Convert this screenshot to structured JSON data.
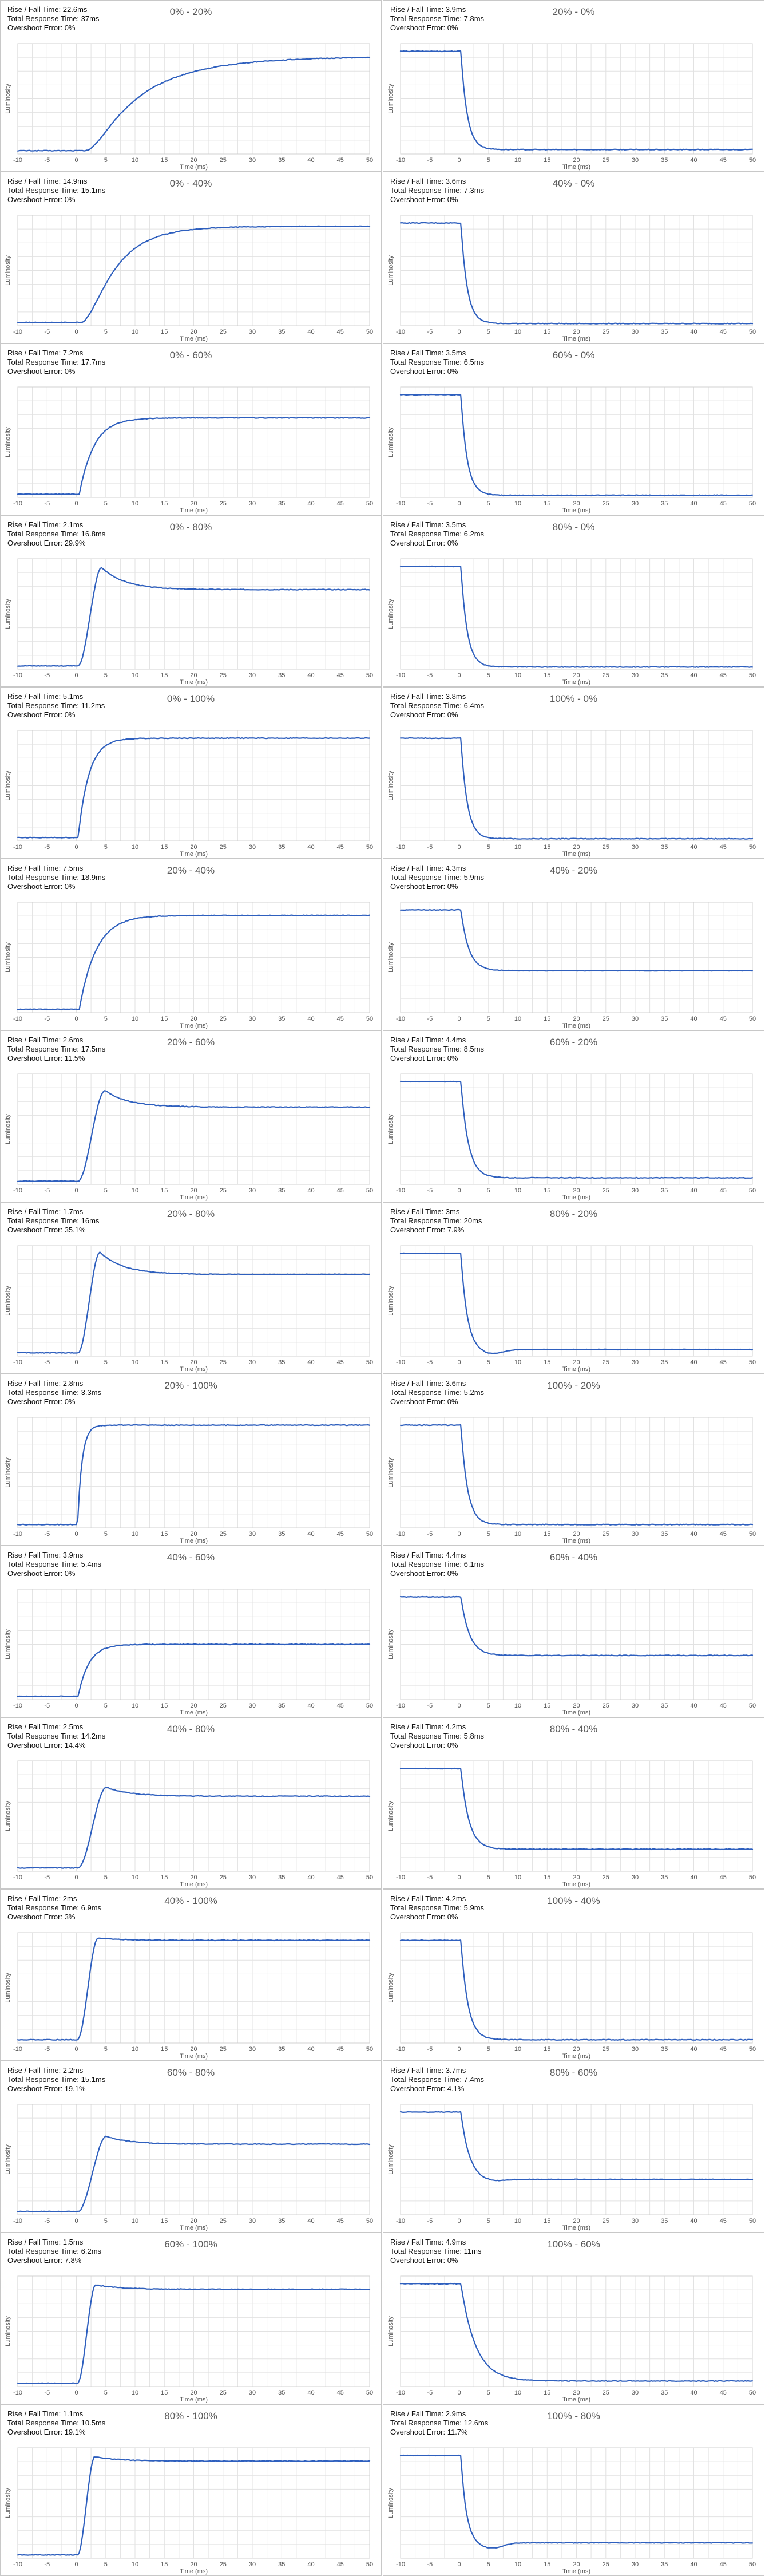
{
  "colors": {
    "curve": "#2e5fbe",
    "grid": "#e2e2e2",
    "border": "#c8c8c8",
    "title": "#5a5a5a"
  },
  "labels": {
    "rise": "Rise / Fall Time: ",
    "total": "Total Response Time: ",
    "overshoot": "Overshoot Error: "
  },
  "chart_data": [
    {
      "type": "line",
      "title": "0% - 20%",
      "rise_fall": "22.6ms",
      "total": "37ms",
      "overshoot": "0%",
      "kind": "rise",
      "from": 0,
      "to": 20,
      "settle": 0.88,
      "speed": 0.1,
      "os": 0,
      "delay": 1.5,
      "xlabel": "Time (ms)",
      "ylabel": "Luminosity",
      "xlim": [
        -10,
        50
      ],
      "xticks": [
        -10,
        -5,
        0,
        5,
        10,
        15,
        20,
        25,
        30,
        35,
        40,
        45,
        50
      ]
    },
    {
      "type": "line",
      "title": "20% - 0%",
      "rise_fall": "3.9ms",
      "total": "7.8ms",
      "overshoot": "0%",
      "kind": "fall",
      "from": 20,
      "to": 0,
      "settle": 0.04,
      "speed": 0.95,
      "os": 0,
      "delay": 0.3,
      "xlabel": "Time (ms)",
      "ylabel": "Luminosity",
      "xlim": [
        -10,
        50
      ],
      "xticks": [
        -10,
        -5,
        0,
        5,
        10,
        15,
        20,
        25,
        30,
        35,
        40,
        45,
        50
      ]
    },
    {
      "type": "line",
      "title": "0% - 40%",
      "rise_fall": "14.9ms",
      "total": "15.1ms",
      "overshoot": "0%",
      "kind": "rise",
      "from": 0,
      "to": 40,
      "settle": 0.9,
      "speed": 0.18,
      "os": 0,
      "delay": 0.8,
      "xlabel": "Time (ms)",
      "ylabel": "Luminosity",
      "xlim": [
        -10,
        50
      ],
      "xticks": [
        -10,
        -5,
        0,
        5,
        10,
        15,
        20,
        25,
        30,
        35,
        40,
        45,
        50
      ]
    },
    {
      "type": "line",
      "title": "40% - 0%",
      "rise_fall": "3.6ms",
      "total": "7.3ms",
      "overshoot": "0%",
      "kind": "fall",
      "from": 40,
      "to": 0,
      "settle": 0.02,
      "speed": 0.95,
      "os": 0,
      "delay": 0.3,
      "xlabel": "Time (ms)",
      "ylabel": "Luminosity",
      "xlim": [
        -10,
        50
      ],
      "xticks": [
        -10,
        -5,
        0,
        5,
        10,
        15,
        20,
        25,
        30,
        35,
        40,
        45,
        50
      ]
    },
    {
      "type": "line",
      "title": "0% - 60%",
      "rise_fall": "7.2ms",
      "total": "17.7ms",
      "overshoot": "0%",
      "kind": "rise",
      "from": 0,
      "to": 60,
      "settle": 0.72,
      "speed": 0.4,
      "os": 0,
      "delay": 0.5,
      "xlabel": "Time (ms)",
      "ylabel": "Luminosity",
      "xlim": [
        -10,
        50
      ],
      "xticks": [
        -10,
        -5,
        0,
        5,
        10,
        15,
        20,
        25,
        30,
        35,
        40,
        45,
        50
      ]
    },
    {
      "type": "line",
      "title": "60% - 0%",
      "rise_fall": "3.5ms",
      "total": "6.5ms",
      "overshoot": "0%",
      "kind": "fall",
      "from": 60,
      "to": 0,
      "settle": 0.02,
      "speed": 0.95,
      "os": 0,
      "delay": 0.3,
      "xlabel": "Time (ms)",
      "ylabel": "Luminosity",
      "xlim": [
        -10,
        50
      ],
      "xticks": [
        -10,
        -5,
        0,
        5,
        10,
        15,
        20,
        25,
        30,
        35,
        40,
        45,
        50
      ]
    },
    {
      "type": "line",
      "title": "0% - 80%",
      "rise_fall": "2.1ms",
      "total": "16.8ms",
      "overshoot": "29.9%",
      "kind": "rise",
      "from": 0,
      "to": 80,
      "settle": 0.72,
      "speed": 1.0,
      "os": 0.2,
      "delay": 0.3,
      "xlabel": "Time (ms)",
      "ylabel": "Luminosity",
      "xlim": [
        -10,
        50
      ],
      "xticks": [
        -10,
        -5,
        0,
        5,
        10,
        15,
        20,
        25,
        30,
        35,
        40,
        45,
        50
      ]
    },
    {
      "type": "line",
      "title": "80% - 0%",
      "rise_fall": "3.5ms",
      "total": "6.2ms",
      "overshoot": "0%",
      "kind": "fall",
      "from": 80,
      "to": 0,
      "settle": 0.02,
      "speed": 0.95,
      "os": 0,
      "delay": 0.3,
      "xlabel": "Time (ms)",
      "ylabel": "Luminosity",
      "xlim": [
        -10,
        50
      ],
      "xticks": [
        -10,
        -5,
        0,
        5,
        10,
        15,
        20,
        25,
        30,
        35,
        40,
        45,
        50
      ]
    },
    {
      "type": "line",
      "title": "0% - 100%",
      "rise_fall": "5.1ms",
      "total": "11.2ms",
      "overshoot": "0%",
      "kind": "rise",
      "from": 0,
      "to": 100,
      "settle": 0.93,
      "speed": 0.55,
      "os": 0,
      "delay": 0.3,
      "xlabel": "Time (ms)",
      "ylabel": "Luminosity",
      "xlim": [
        -10,
        50
      ],
      "xticks": [
        -10,
        -5,
        0,
        5,
        10,
        15,
        20,
        25,
        30,
        35,
        40,
        45,
        50
      ]
    },
    {
      "type": "line",
      "title": "100% - 0%",
      "rise_fall": "3.8ms",
      "total": "6.4ms",
      "overshoot": "0%",
      "kind": "fall",
      "from": 100,
      "to": 0,
      "settle": 0.02,
      "speed": 0.95,
      "os": 0,
      "delay": 0.3,
      "xlabel": "Time (ms)",
      "ylabel": "Luminosity",
      "xlim": [
        -10,
        50
      ],
      "xticks": [
        -10,
        -5,
        0,
        5,
        10,
        15,
        20,
        25,
        30,
        35,
        40,
        45,
        50
      ]
    },
    {
      "type": "line",
      "title": "20% - 40%",
      "rise_fall": "7.5ms",
      "total": "18.9ms",
      "overshoot": "0%",
      "kind": "rise",
      "from": 20,
      "to": 40,
      "settle": 0.88,
      "speed": 0.35,
      "os": 0,
      "delay": 0.5,
      "xlabel": "Time (ms)",
      "ylabel": "Luminosity",
      "xlim": [
        -10,
        50
      ],
      "xticks": [
        -10,
        -5,
        0,
        5,
        10,
        15,
        20,
        25,
        30,
        35,
        40,
        45,
        50
      ]
    },
    {
      "type": "line",
      "title": "40% - 20%",
      "rise_fall": "4.3ms",
      "total": "5.9ms",
      "overshoot": "0%",
      "kind": "fall",
      "from": 40,
      "to": 20,
      "settle": 0.38,
      "speed": 0.75,
      "os": 0,
      "delay": 0.3,
      "xlabel": "Time (ms)",
      "ylabel": "Luminosity",
      "xlim": [
        -10,
        50
      ],
      "xticks": [
        -10,
        -5,
        0,
        5,
        10,
        15,
        20,
        25,
        30,
        35,
        40,
        45,
        50
      ]
    },
    {
      "type": "line",
      "title": "20% - 60%",
      "rise_fall": "2.6ms",
      "total": "17.5ms",
      "overshoot": "11.5%",
      "kind": "rise",
      "from": 20,
      "to": 60,
      "settle": 0.7,
      "speed": 0.85,
      "os": 0.15,
      "delay": 0.3,
      "xlabel": "Time (ms)",
      "ylabel": "Luminosity",
      "xlim": [
        -10,
        50
      ],
      "xticks": [
        -10,
        -5,
        0,
        5,
        10,
        15,
        20,
        25,
        30,
        35,
        40,
        45,
        50
      ]
    },
    {
      "type": "line",
      "title": "60% - 20%",
      "rise_fall": "4.4ms",
      "total": "8.5ms",
      "overshoot": "0%",
      "kind": "fall",
      "from": 60,
      "to": 20,
      "settle": 0.06,
      "speed": 0.8,
      "os": 0,
      "delay": 0.3,
      "xlabel": "Time (ms)",
      "ylabel": "Luminosity",
      "xlim": [
        -10,
        50
      ],
      "xticks": [
        -10,
        -5,
        0,
        5,
        10,
        15,
        20,
        25,
        30,
        35,
        40,
        45,
        50
      ]
    },
    {
      "type": "line",
      "title": "20% - 80%",
      "rise_fall": "1.7ms",
      "total": "16ms",
      "overshoot": "35.1%",
      "kind": "rise",
      "from": 20,
      "to": 80,
      "settle": 0.74,
      "speed": 1.1,
      "os": 0.2,
      "delay": 0.3,
      "xlabel": "Time (ms)",
      "ylabel": "Luminosity",
      "xlim": [
        -10,
        50
      ],
      "xticks": [
        -10,
        -5,
        0,
        5,
        10,
        15,
        20,
        25,
        30,
        35,
        40,
        45,
        50
      ]
    },
    {
      "type": "line",
      "title": "80% - 20%",
      "rise_fall": "3ms",
      "total": "20ms",
      "overshoot": "7.9%",
      "kind": "fall",
      "from": 80,
      "to": 20,
      "settle": 0.06,
      "speed": 0.95,
      "os": 0.04,
      "delay": 0.3,
      "xlabel": "Time (ms)",
      "ylabel": "Luminosity",
      "xlim": [
        -10,
        50
      ],
      "xticks": [
        -10,
        -5,
        0,
        5,
        10,
        15,
        20,
        25,
        30,
        35,
        40,
        45,
        50
      ]
    },
    {
      "type": "line",
      "title": "20% - 100%",
      "rise_fall": "2.8ms",
      "total": "3.3ms",
      "overshoot": "0%",
      "kind": "rise",
      "from": 20,
      "to": 100,
      "settle": 0.93,
      "speed": 1.3,
      "os": 0,
      "delay": 0.2,
      "xlabel": "Time (ms)",
      "ylabel": "Luminosity",
      "xlim": [
        -10,
        50
      ],
      "xticks": [
        -10,
        -5,
        0,
        5,
        10,
        15,
        20,
        25,
        30,
        35,
        40,
        45,
        50
      ]
    },
    {
      "type": "line",
      "title": "100% - 20%",
      "rise_fall": "3.6ms",
      "total": "5.2ms",
      "overshoot": "0%",
      "kind": "fall",
      "from": 100,
      "to": 20,
      "settle": 0.03,
      "speed": 0.9,
      "os": 0,
      "delay": 0.3,
      "xlabel": "Time (ms)",
      "ylabel": "Luminosity",
      "xlim": [
        -10,
        50
      ],
      "xticks": [
        -10,
        -5,
        0,
        5,
        10,
        15,
        20,
        25,
        30,
        35,
        40,
        45,
        50
      ]
    },
    {
      "type": "line",
      "title": "40% - 60%",
      "rise_fall": "3.9ms",
      "total": "5.4ms",
      "overshoot": "0%",
      "kind": "rise",
      "from": 40,
      "to": 60,
      "settle": 0.5,
      "speed": 0.55,
      "os": 0,
      "delay": 0.3,
      "xlabel": "Time (ms)",
      "ylabel": "Luminosity",
      "xlim": [
        -10,
        50
      ],
      "xticks": [
        -10,
        -5,
        0,
        5,
        10,
        15,
        20,
        25,
        30,
        35,
        40,
        45,
        50
      ]
    },
    {
      "type": "line",
      "title": "60% - 40%",
      "rise_fall": "4.4ms",
      "total": "6.1ms",
      "overshoot": "0%",
      "kind": "fall",
      "from": 60,
      "to": 40,
      "settle": 0.4,
      "speed": 0.7,
      "os": 0,
      "delay": 0.3,
      "xlabel": "Time (ms)",
      "ylabel": "Luminosity",
      "xlim": [
        -10,
        50
      ],
      "xticks": [
        -10,
        -5,
        0,
        5,
        10,
        15,
        20,
        25,
        30,
        35,
        40,
        45,
        50
      ]
    },
    {
      "type": "line",
      "title": "40% - 80%",
      "rise_fall": "2.5ms",
      "total": "14.2ms",
      "overshoot": "14.4%",
      "kind": "rise",
      "from": 40,
      "to": 80,
      "settle": 0.68,
      "speed": 0.8,
      "os": 0.08,
      "delay": 0.3,
      "xlabel": "Time (ms)",
      "ylabel": "Luminosity",
      "xlim": [
        -10,
        50
      ],
      "xticks": [
        -10,
        -5,
        0,
        5,
        10,
        15,
        20,
        25,
        30,
        35,
        40,
        45,
        50
      ]
    },
    {
      "type": "line",
      "title": "80% - 40%",
      "rise_fall": "4.2ms",
      "total": "5.8ms",
      "overshoot": "0%",
      "kind": "fall",
      "from": 80,
      "to": 40,
      "settle": 0.2,
      "speed": 0.75,
      "os": 0,
      "delay": 0.3,
      "xlabel": "Time (ms)",
      "ylabel": "Luminosity",
      "xlim": [
        -10,
        50
      ],
      "xticks": [
        -10,
        -5,
        0,
        5,
        10,
        15,
        20,
        25,
        30,
        35,
        40,
        45,
        50
      ]
    },
    {
      "type": "line",
      "title": "40% - 100%",
      "rise_fall": "2ms",
      "total": "6.9ms",
      "overshoot": "3%",
      "kind": "rise",
      "from": 40,
      "to": 100,
      "settle": 0.93,
      "speed": 1.2,
      "os": 0.02,
      "delay": 0.2,
      "xlabel": "Time (ms)",
      "ylabel": "Luminosity",
      "xlim": [
        -10,
        50
      ],
      "xticks": [
        -10,
        -5,
        0,
        5,
        10,
        15,
        20,
        25,
        30,
        35,
        40,
        45,
        50
      ]
    },
    {
      "type": "line",
      "title": "100% - 40%",
      "rise_fall": "4.2ms",
      "total": "5.9ms",
      "overshoot": "0%",
      "kind": "fall",
      "from": 100,
      "to": 40,
      "settle": 0.03,
      "speed": 0.85,
      "os": 0,
      "delay": 0.3,
      "xlabel": "Time (ms)",
      "ylabel": "Luminosity",
      "xlim": [
        -10,
        50
      ],
      "xticks": [
        -10,
        -5,
        0,
        5,
        10,
        15,
        20,
        25,
        30,
        35,
        40,
        45,
        50
      ]
    },
    {
      "type": "line",
      "title": "60% - 80%",
      "rise_fall": "2.2ms",
      "total": "15.1ms",
      "overshoot": "19.1%",
      "kind": "rise",
      "from": 60,
      "to": 80,
      "settle": 0.64,
      "speed": 0.8,
      "os": 0.07,
      "delay": 0.3,
      "xlabel": "Time (ms)",
      "ylabel": "Luminosity",
      "xlim": [
        -10,
        50
      ],
      "xticks": [
        -10,
        -5,
        0,
        5,
        10,
        15,
        20,
        25,
        30,
        35,
        40,
        45,
        50
      ]
    },
    {
      "type": "line",
      "title": "80% - 60%",
      "rise_fall": "3.7ms",
      "total": "7.4ms",
      "overshoot": "4.1%",
      "kind": "fall",
      "from": 80,
      "to": 60,
      "settle": 0.32,
      "speed": 0.7,
      "os": 0.02,
      "delay": 0.3,
      "xlabel": "Time (ms)",
      "ylabel": "Luminosity",
      "xlim": [
        -10,
        50
      ],
      "xticks": [
        -10,
        -5,
        0,
        5,
        10,
        15,
        20,
        25,
        30,
        35,
        40,
        45,
        50
      ]
    },
    {
      "type": "line",
      "title": "60% - 100%",
      "rise_fall": "1.5ms",
      "total": "6.2ms",
      "overshoot": "7.8%",
      "kind": "rise",
      "from": 60,
      "to": 100,
      "settle": 0.88,
      "speed": 1.4,
      "os": 0.04,
      "delay": 0.2,
      "xlabel": "Time (ms)",
      "ylabel": "Luminosity",
      "xlim": [
        -10,
        50
      ],
      "xticks": [
        -10,
        -5,
        0,
        5,
        10,
        15,
        20,
        25,
        30,
        35,
        40,
        45,
        50
      ]
    },
    {
      "type": "line",
      "title": "100% - 60%",
      "rise_fall": "4.9ms",
      "total": "11ms",
      "overshoot": "0%",
      "kind": "fall",
      "from": 100,
      "to": 60,
      "settle": 0.05,
      "speed": 0.4,
      "os": 0,
      "delay": 0.3,
      "xlabel": "Time (ms)",
      "ylabel": "Luminosity",
      "xlim": [
        -10,
        50
      ],
      "xticks": [
        -10,
        -5,
        0,
        5,
        10,
        15,
        20,
        25,
        30,
        35,
        40,
        45,
        50
      ]
    },
    {
      "type": "line",
      "title": "80% - 100%",
      "rise_fall": "1.1ms",
      "total": "10.5ms",
      "overshoot": "19.1%",
      "kind": "rise",
      "from": 80,
      "to": 100,
      "settle": 0.88,
      "speed": 1.5,
      "os": 0.04,
      "delay": 0.2,
      "xlabel": "Time (ms)",
      "ylabel": "Luminosity",
      "xlim": [
        -10,
        50
      ],
      "xticks": [
        -10,
        -5,
        0,
        5,
        10,
        15,
        20,
        25,
        30,
        35,
        40,
        45,
        50
      ]
    },
    {
      "type": "line",
      "title": "100% - 80%",
      "rise_fall": "2.9ms",
      "total": "12.6ms",
      "overshoot": "11.7%",
      "kind": "fall",
      "from": 100,
      "to": 80,
      "settle": 0.14,
      "speed": 1.1,
      "os": 0.05,
      "delay": 0.3,
      "xlabel": "Time (ms)",
      "ylabel": "Luminosity",
      "xlim": [
        -10,
        50
      ],
      "xticks": [
        -10,
        -5,
        0,
        5,
        10,
        15,
        20,
        25,
        30,
        35,
        40,
        45,
        50
      ]
    }
  ]
}
